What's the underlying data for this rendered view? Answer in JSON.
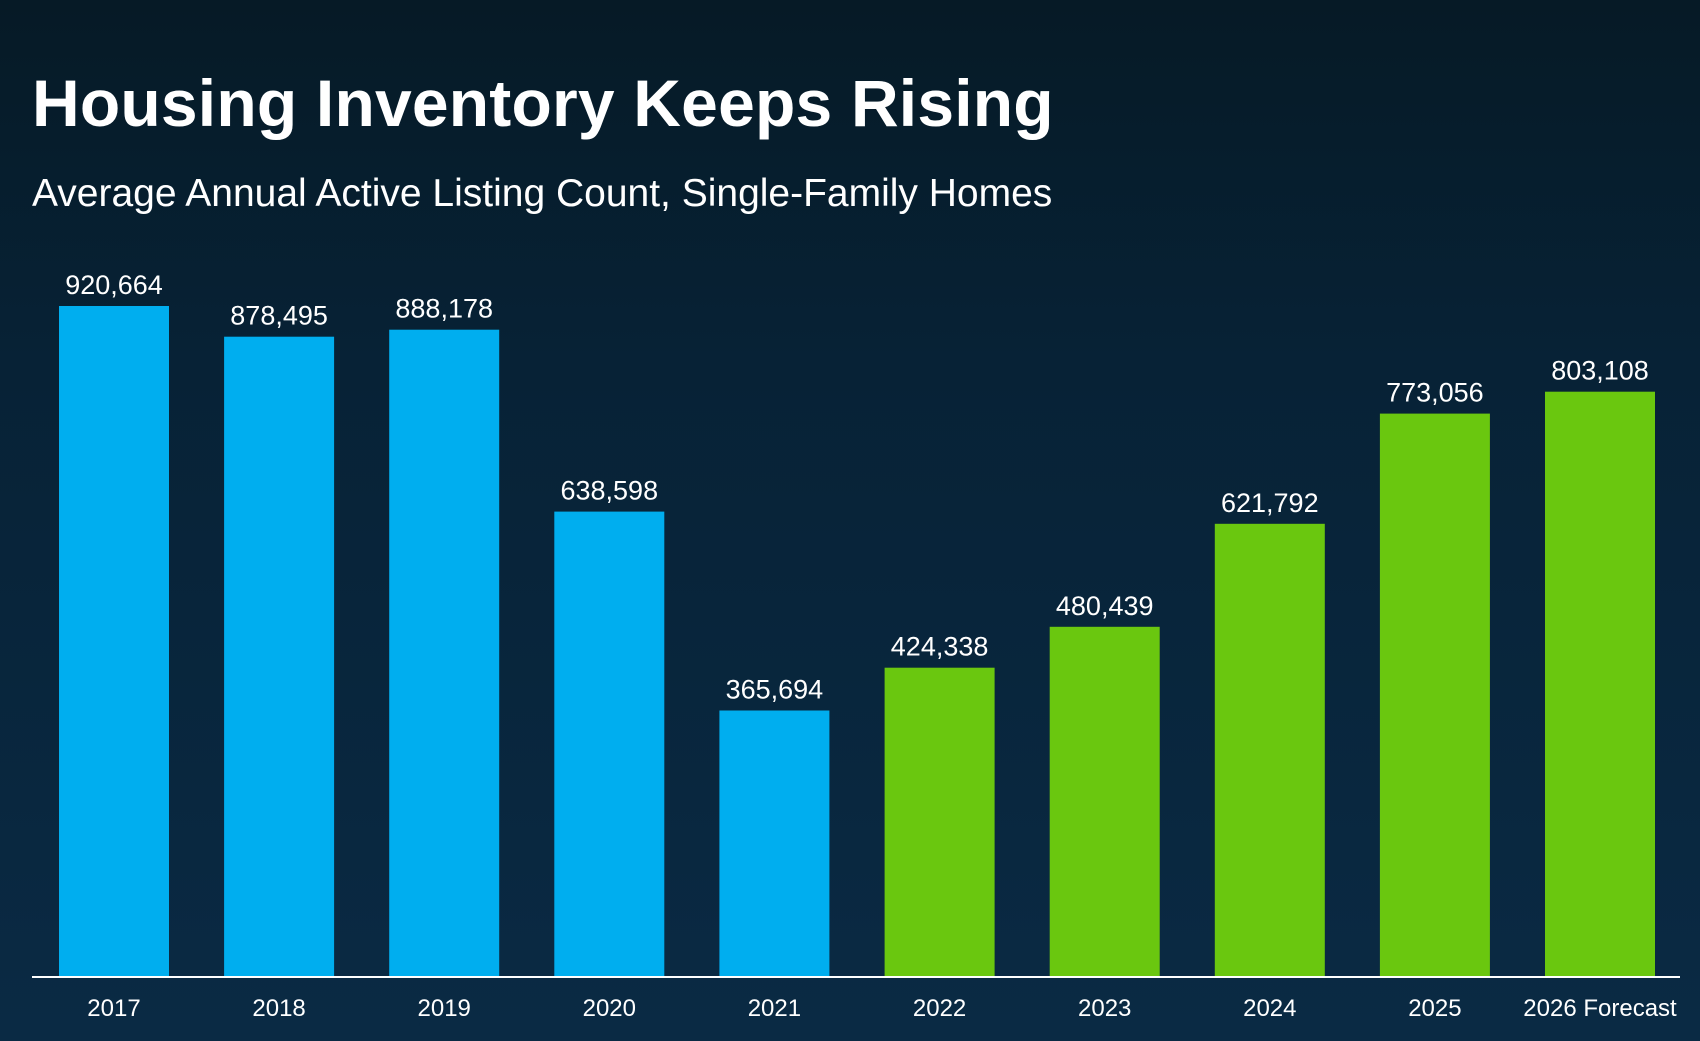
{
  "title": "Housing Inventory Keeps Rising",
  "subtitle": "Average Annual Active Listing Count, Single-Family Homes",
  "colors": {
    "actual": "#00aeef",
    "recovery": "#6ac70f",
    "axis": "#ffffff",
    "text": "#ffffff"
  },
  "chart_data": {
    "type": "bar",
    "title": "Housing Inventory Keeps Rising",
    "subtitle": "Average Annual Active Listing Count, Single-Family Homes",
    "categories": [
      "2017",
      "2018",
      "2019",
      "2020",
      "2021",
      "2022",
      "2023",
      "2024",
      "2025",
      "2026 Forecast"
    ],
    "values": [
      920664,
      878495,
      888178,
      638598,
      365694,
      424338,
      480439,
      621792,
      773056,
      803108
    ],
    "data_labels": [
      "920,664",
      "878,495",
      "888,178",
      "638,598",
      "365,694",
      "424,338",
      "480,439",
      "621,792",
      "773,056",
      "803,108"
    ],
    "bar_colors": [
      "#00aeef",
      "#00aeef",
      "#00aeef",
      "#00aeef",
      "#00aeef",
      "#6ac70f",
      "#6ac70f",
      "#6ac70f",
      "#6ac70f",
      "#6ac70f"
    ],
    "ylim": [
      0,
      920664
    ],
    "xlabel": "",
    "ylabel": "",
    "grid": false,
    "legend": "none"
  }
}
